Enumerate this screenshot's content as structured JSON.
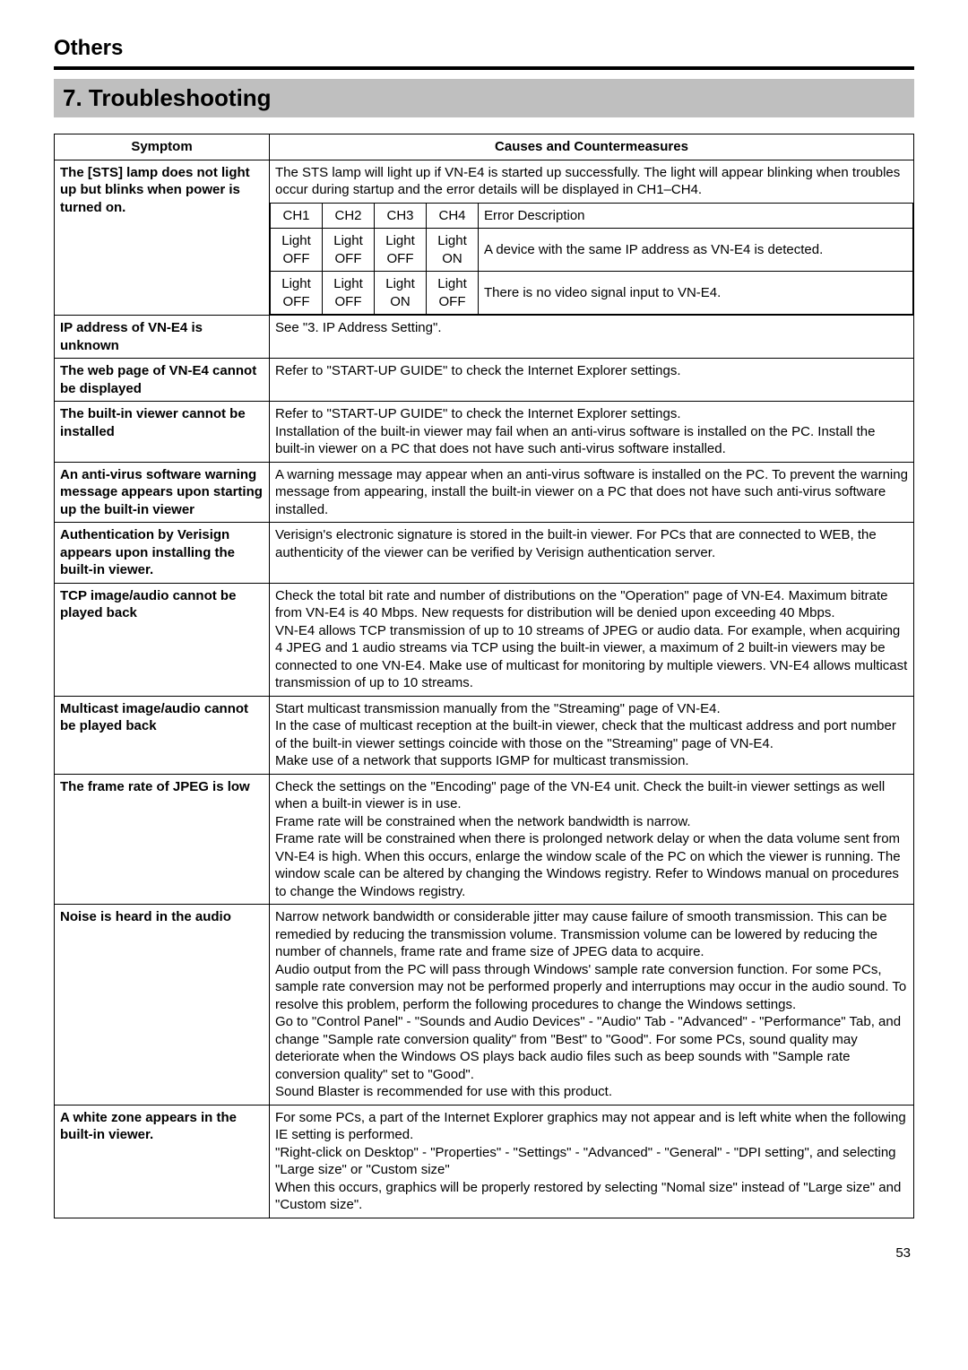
{
  "category": "Others",
  "title": "7. Troubleshooting",
  "table": {
    "headers": {
      "symptom": "Symptom",
      "causes": "Causes and Countermeasures"
    },
    "row1": {
      "symptom": "The [STS] lamp does not light up but blinks when power is turned on.",
      "intro": "The STS lamp will light up if VN-E4 is started up successfully. The light will appear blinking when troubles occur during startup and the error details will be displayed in CH1–CH4.",
      "subheaders": {
        "ch1": "CH1",
        "ch2": "CH2",
        "ch3": "CH3",
        "ch4": "CH4",
        "err": "Error Description"
      },
      "subrows": [
        {
          "ch1": "Light OFF",
          "ch2": "Light OFF",
          "ch3": "Light OFF",
          "ch4": "Light ON",
          "err": "A device with the same IP address as VN-E4 is detected."
        },
        {
          "ch1": "Light OFF",
          "ch2": "Light OFF",
          "ch3": "Light ON",
          "ch4": "Light OFF",
          "err": "There is no video signal input to VN-E4."
        }
      ]
    },
    "rows": [
      {
        "symptom": "IP address of VN-E4 is unknown",
        "cause": "See \"3. IP Address Setting\"."
      },
      {
        "symptom": "The web page of VN-E4 cannot be displayed",
        "cause": "Refer to \"START-UP GUIDE\" to check the Internet Explorer settings."
      },
      {
        "symptom": "The built-in viewer cannot be installed",
        "cause": "Refer to \"START-UP GUIDE\" to check the Internet Explorer settings.\nInstallation of the built-in viewer may fail when an anti-virus software is installed on the PC. Install the built-in viewer on a PC that does not have such anti-virus software installed."
      },
      {
        "symptom": "An anti-virus software warning message appears upon starting up the built-in viewer",
        "cause": "A warning message may appear when an anti-virus software is installed on the PC. To prevent the warning message from appearing, install the built-in viewer on a PC that does not have such anti-virus software installed."
      },
      {
        "symptom": "Authentication by Verisign appears upon installing the built-in viewer.",
        "cause": "Verisign's electronic signature is stored in the built-in viewer. For PCs that are connected to WEB, the authenticity of the viewer can be verified by Verisign authentication server."
      },
      {
        "symptom": "TCP image/audio cannot be played back",
        "cause": "Check the total bit rate and number of distributions on the \"Operation\" page of VN-E4. Maximum bitrate from VN-E4 is 40 Mbps. New requests for distribution will be denied upon exceeding 40 Mbps.\nVN-E4 allows TCP transmission of up to 10 streams of JPEG or audio data. For example, when acquiring 4 JPEG and 1 audio streams via TCP using the built-in viewer, a maximum of 2 built-in viewers may be connected to one VN-E4. Make use of multicast for monitoring by multiple viewers. VN-E4 allows multicast transmission of up to 10 streams."
      },
      {
        "symptom": "Multicast image/audio cannot be played back",
        "cause": "Start multicast transmission manually from the \"Streaming\" page of VN-E4.\nIn the case of multicast reception at the built-in viewer, check that the multicast address and port number of the built-in viewer settings coincide with those on the \"Streaming\" page of VN-E4.\nMake use of a network that supports IGMP for multicast transmission."
      },
      {
        "symptom": "The frame rate of JPEG is low",
        "cause": "Check the settings on the \"Encoding\" page of the VN-E4 unit. Check the built-in viewer settings as well when a built-in viewer is in use.\nFrame rate will be constrained when the network bandwidth is narrow.\nFrame rate will be constrained when there is prolonged network delay or when the data volume sent from VN-E4 is high. When this occurs, enlarge the window scale of the PC on which the viewer is running. The window scale can be altered by changing the Windows registry. Refer to Windows manual on procedures to change the Windows registry."
      },
      {
        "symptom": "Noise is heard in the audio",
        "cause": "Narrow network bandwidth or considerable jitter may cause failure of smooth transmission. This can be remedied by reducing the transmission volume. Transmission volume can be lowered by reducing the number of channels, frame rate and frame size of JPEG data to acquire.\nAudio output from the PC will pass through Windows' sample rate conversion function. For some PCs, sample rate conversion may not be performed properly and interruptions may occur in the audio sound. To resolve this problem, perform the following procedures to change the Windows settings.\nGo to \"Control Panel\" - \"Sounds and Audio Devices\" - \"Audio\" Tab - \"Advanced\" - \"Performance\" Tab, and change \"Sample rate conversion quality\" from \"Best\" to \"Good\". For some PCs, sound quality may deteriorate when the Windows OS plays back audio files such as beep sounds with \"Sample rate conversion quality\" set to \"Good\".\nSound Blaster is recommended for use with this product."
      },
      {
        "symptom": "A white zone appears in the built-in viewer.",
        "cause": "For some PCs, a part of the Internet Explorer graphics may not appear and is left white when the following IE setting is performed.\n\"Right-click on Desktop\" - \"Properties\" - \"Settings\" - \"Advanced\" - \"General\" - \"DPI setting\", and selecting \"Large size\" or \"Custom size\"\nWhen this occurs, graphics will be properly restored by selecting \"Nomal size\" instead of \"Large size\" and \"Custom size\"."
      }
    ]
  },
  "pagenum": "53"
}
